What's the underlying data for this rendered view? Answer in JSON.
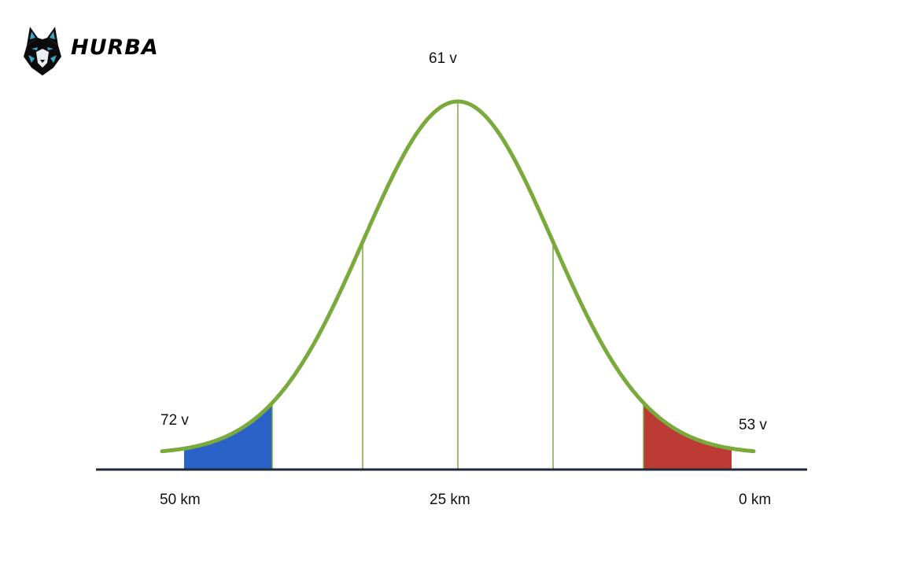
{
  "brand": {
    "name": "HURBA",
    "logo_icon": "wolf-head-icon"
  },
  "colors": {
    "curve": "#7aaa3c",
    "left_tail": "#2b62c8",
    "right_tail": "#bd3b35",
    "baseline": "#1f2a3a"
  },
  "labels": {
    "peak": "61 v",
    "left_tail": "72 v",
    "right_tail": "53 v",
    "x_left": "50 km",
    "x_center": "25 km",
    "x_right": "0 km"
  }
}
